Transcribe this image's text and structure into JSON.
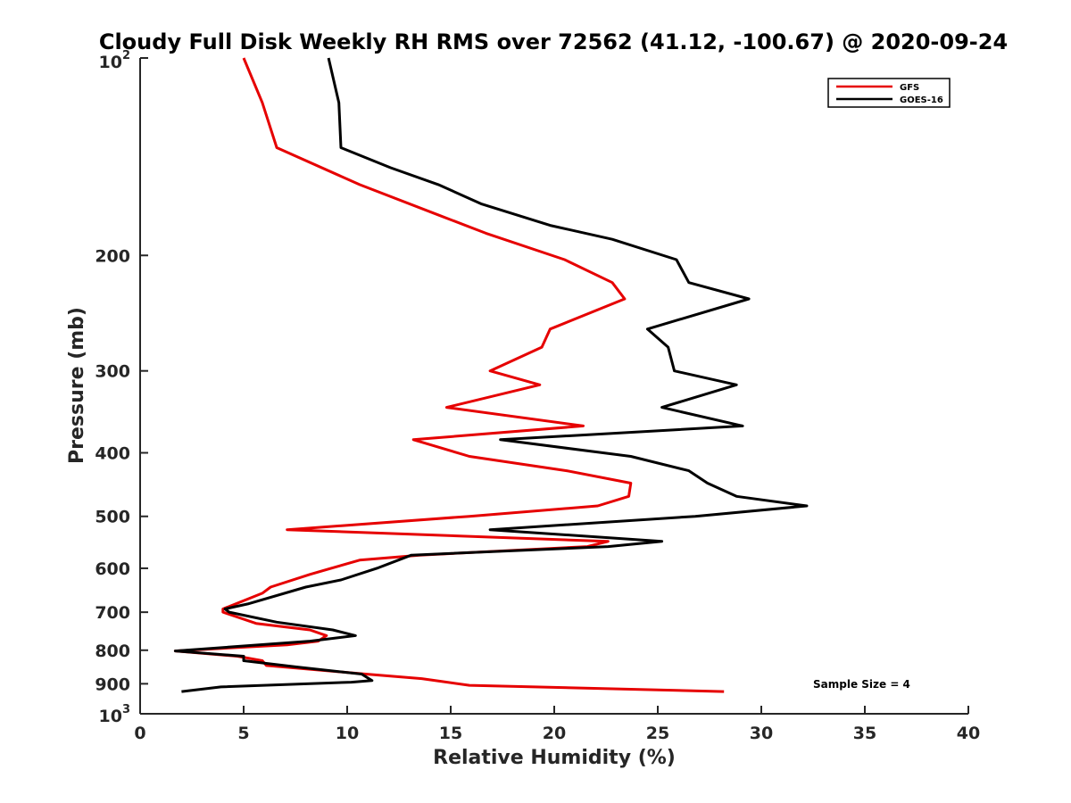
{
  "chart_data": {
    "type": "line",
    "title": "Cloudy Full Disk Weekly RH RMS over 72562 (41.12, -100.67) @ 2020-09-24",
    "xlabel": "Relative Humidity (%)",
    "ylabel": "Pressure (mb)",
    "xlim": [
      0,
      40
    ],
    "ylim": [
      100,
      1000
    ],
    "y_scale": "log",
    "y_reversed": true,
    "grid": false,
    "legend_position": "top-right",
    "x_ticks": [
      0,
      5,
      10,
      15,
      20,
      25,
      30,
      35,
      40
    ],
    "x_tick_labels": [
      "0",
      "5",
      "10",
      "15",
      "20",
      "25",
      "30",
      "35",
      "40"
    ],
    "y_ticks": [
      200,
      300,
      400,
      500,
      600,
      700,
      800,
      900
    ],
    "y_tick_labels": [
      "200",
      "300",
      "400",
      "500",
      "600",
      "700",
      "800",
      "900"
    ],
    "y_top_label": {
      "base": "10",
      "exp": "2"
    },
    "y_bottom_label": {
      "base": "10",
      "exp": "3"
    },
    "annotation": "Sample Size = 4",
    "series": [
      {
        "name": "GFS",
        "color": "#e60000",
        "points": [
          [
            5.0,
            100
          ],
          [
            5.9,
            117
          ],
          [
            6.6,
            137
          ],
          [
            10.6,
            156
          ],
          [
            14.5,
            174
          ],
          [
            16.7,
            185
          ],
          [
            20.5,
            203
          ],
          [
            22.8,
            220
          ],
          [
            23.4,
            233
          ],
          [
            19.8,
            259
          ],
          [
            19.4,
            276
          ],
          [
            16.9,
            300
          ],
          [
            19.3,
            315
          ],
          [
            14.8,
            341
          ],
          [
            21.4,
            364
          ],
          [
            13.2,
            382
          ],
          [
            15.9,
            405
          ],
          [
            20.6,
            426
          ],
          [
            23.7,
            445
          ],
          [
            23.6,
            466
          ],
          [
            22.1,
            482
          ],
          [
            15.9,
            500
          ],
          [
            7.1,
            524
          ],
          [
            22.6,
            546
          ],
          [
            21.6,
            556
          ],
          [
            13.5,
            573
          ],
          [
            10.6,
            583
          ],
          [
            9.3,
            599
          ],
          [
            8.2,
            613
          ],
          [
            6.3,
            641
          ],
          [
            5.9,
            655
          ],
          [
            4.0,
            692
          ],
          [
            4.0,
            700
          ],
          [
            5.6,
            728
          ],
          [
            8.2,
            745
          ],
          [
            9.0,
            760
          ],
          [
            8.6,
            775
          ],
          [
            7.1,
            785
          ],
          [
            1.7,
            802
          ],
          [
            4.7,
            817
          ],
          [
            5.9,
            830
          ],
          [
            6.1,
            844
          ],
          [
            10.9,
            870
          ],
          [
            13.6,
            884
          ],
          [
            15.9,
            905
          ],
          [
            28.2,
            925
          ]
        ]
      },
      {
        "name": "GOES-16",
        "color": "#000000",
        "points": [
          [
            9.1,
            100
          ],
          [
            9.6,
            117
          ],
          [
            9.7,
            137
          ],
          [
            12.1,
            147
          ],
          [
            14.4,
            156
          ],
          [
            16.5,
            167
          ],
          [
            19.8,
            180
          ],
          [
            22.8,
            189
          ],
          [
            25.9,
            203
          ],
          [
            26.5,
            220
          ],
          [
            29.4,
            233
          ],
          [
            24.5,
            259
          ],
          [
            25.5,
            276
          ],
          [
            25.8,
            300
          ],
          [
            28.8,
            315
          ],
          [
            25.2,
            341
          ],
          [
            29.1,
            364
          ],
          [
            17.4,
            382
          ],
          [
            23.7,
            405
          ],
          [
            26.5,
            426
          ],
          [
            27.4,
            445
          ],
          [
            28.8,
            466
          ],
          [
            32.2,
            482
          ],
          [
            26.8,
            500
          ],
          [
            16.9,
            524
          ],
          [
            25.2,
            546
          ],
          [
            22.6,
            556
          ],
          [
            13.1,
            573
          ],
          [
            11.5,
            599
          ],
          [
            9.7,
            625
          ],
          [
            8.0,
            641
          ],
          [
            5.2,
            680
          ],
          [
            4.1,
            692
          ],
          [
            4.3,
            700
          ],
          [
            6.6,
            725
          ],
          [
            9.3,
            745
          ],
          [
            10.4,
            760
          ],
          [
            8.2,
            775
          ],
          [
            1.7,
            802
          ],
          [
            5.0,
            817
          ],
          [
            5.0,
            830
          ],
          [
            7.5,
            848
          ],
          [
            10.7,
            870
          ],
          [
            11.2,
            890
          ],
          [
            10.2,
            895
          ],
          [
            3.9,
            910
          ],
          [
            2.0,
            925
          ]
        ]
      }
    ]
  }
}
